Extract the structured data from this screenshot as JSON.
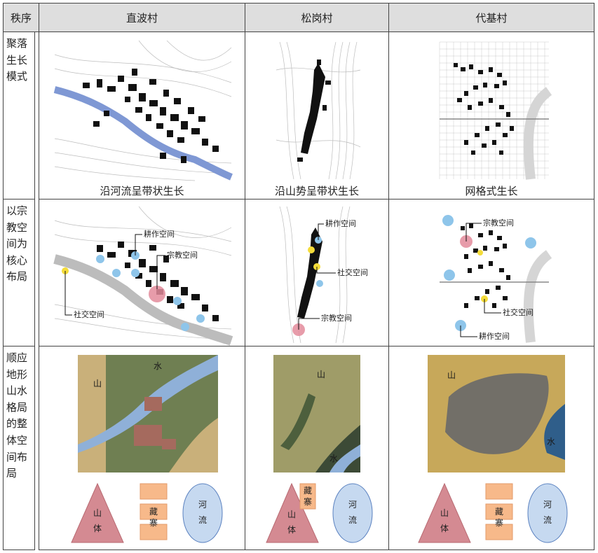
{
  "header": {
    "row_label": "秩序",
    "col1": "直波村",
    "col2": "松岗村",
    "col3": "代基村"
  },
  "rows": {
    "r1": {
      "label": "聚落生长模式",
      "cap1": "沿河流呈带状生长",
      "cap2": "沿山势呈带状生长",
      "cap3": "网格式生长"
    },
    "r2": {
      "label": "以宗教空间为核心布局",
      "c1": {
        "farm": "耕作空间",
        "religion": "宗教空间",
        "social": "社交空间"
      },
      "c2": {
        "farm": "耕作空间",
        "social": "社交空间",
        "religion": "宗教空间"
      },
      "c3": {
        "religion": "宗教空间",
        "social": "社交空间",
        "farm": "耕作空间"
      }
    },
    "r3": {
      "label": "顺应地形山水格局的整体空间布局",
      "c1": {
        "mountain": "山",
        "water": "水"
      },
      "c2": {
        "mountain": "山",
        "water": "水"
      },
      "c3": {
        "mountain": "山",
        "water": "水"
      },
      "shapes": {
        "mountain_body": [
          "山",
          "体"
        ],
        "village": [
          "藏",
          "寨"
        ],
        "river": [
          "河",
          "流"
        ]
      }
    }
  },
  "colors": {
    "header_bg": "#dedede",
    "river_blue": "#7f98d4",
    "religion_pink": "#e38b9b",
    "social_yellow": "#f4dc3a",
    "farm_blue": "#8ec5ea",
    "mountain_fill": "#d48a92",
    "village_fill": "#f7b98a",
    "river_fill": "#c6d9f0"
  }
}
